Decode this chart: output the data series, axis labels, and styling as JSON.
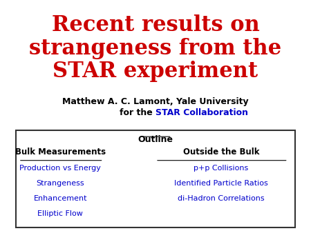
{
  "title_line1": "Recent results on",
  "title_line2": "strangeness from the",
  "title_line3": "STAR experiment",
  "title_color": "#CC0000",
  "author_line1": "Matthew A. C. Lamont, Yale University",
  "author_line2_prefix": "for the ",
  "author_line2_star": "STAR Collaboration",
  "author_color": "#000000",
  "star_color": "#0000CC",
  "outline_title": "Outline",
  "outline_title_color": "#000000",
  "bulk_header": "Bulk Measurements",
  "bulk_header_color": "#000000",
  "bulk_items": [
    "Production vs Energy",
    "Strangeness",
    "Enhancement",
    "Elliptic Flow"
  ],
  "bulk_items_color": "#0000CC",
  "outside_header": "Outside the Bulk",
  "outside_header_color": "#000000",
  "outside_items": [
    "p+p Collisions",
    "Identified Particle Ratios",
    "di-Hadron Correlations"
  ],
  "outside_items_color": "#0000CC",
  "background_color": "#ffffff",
  "box_edge_color": "#333333"
}
